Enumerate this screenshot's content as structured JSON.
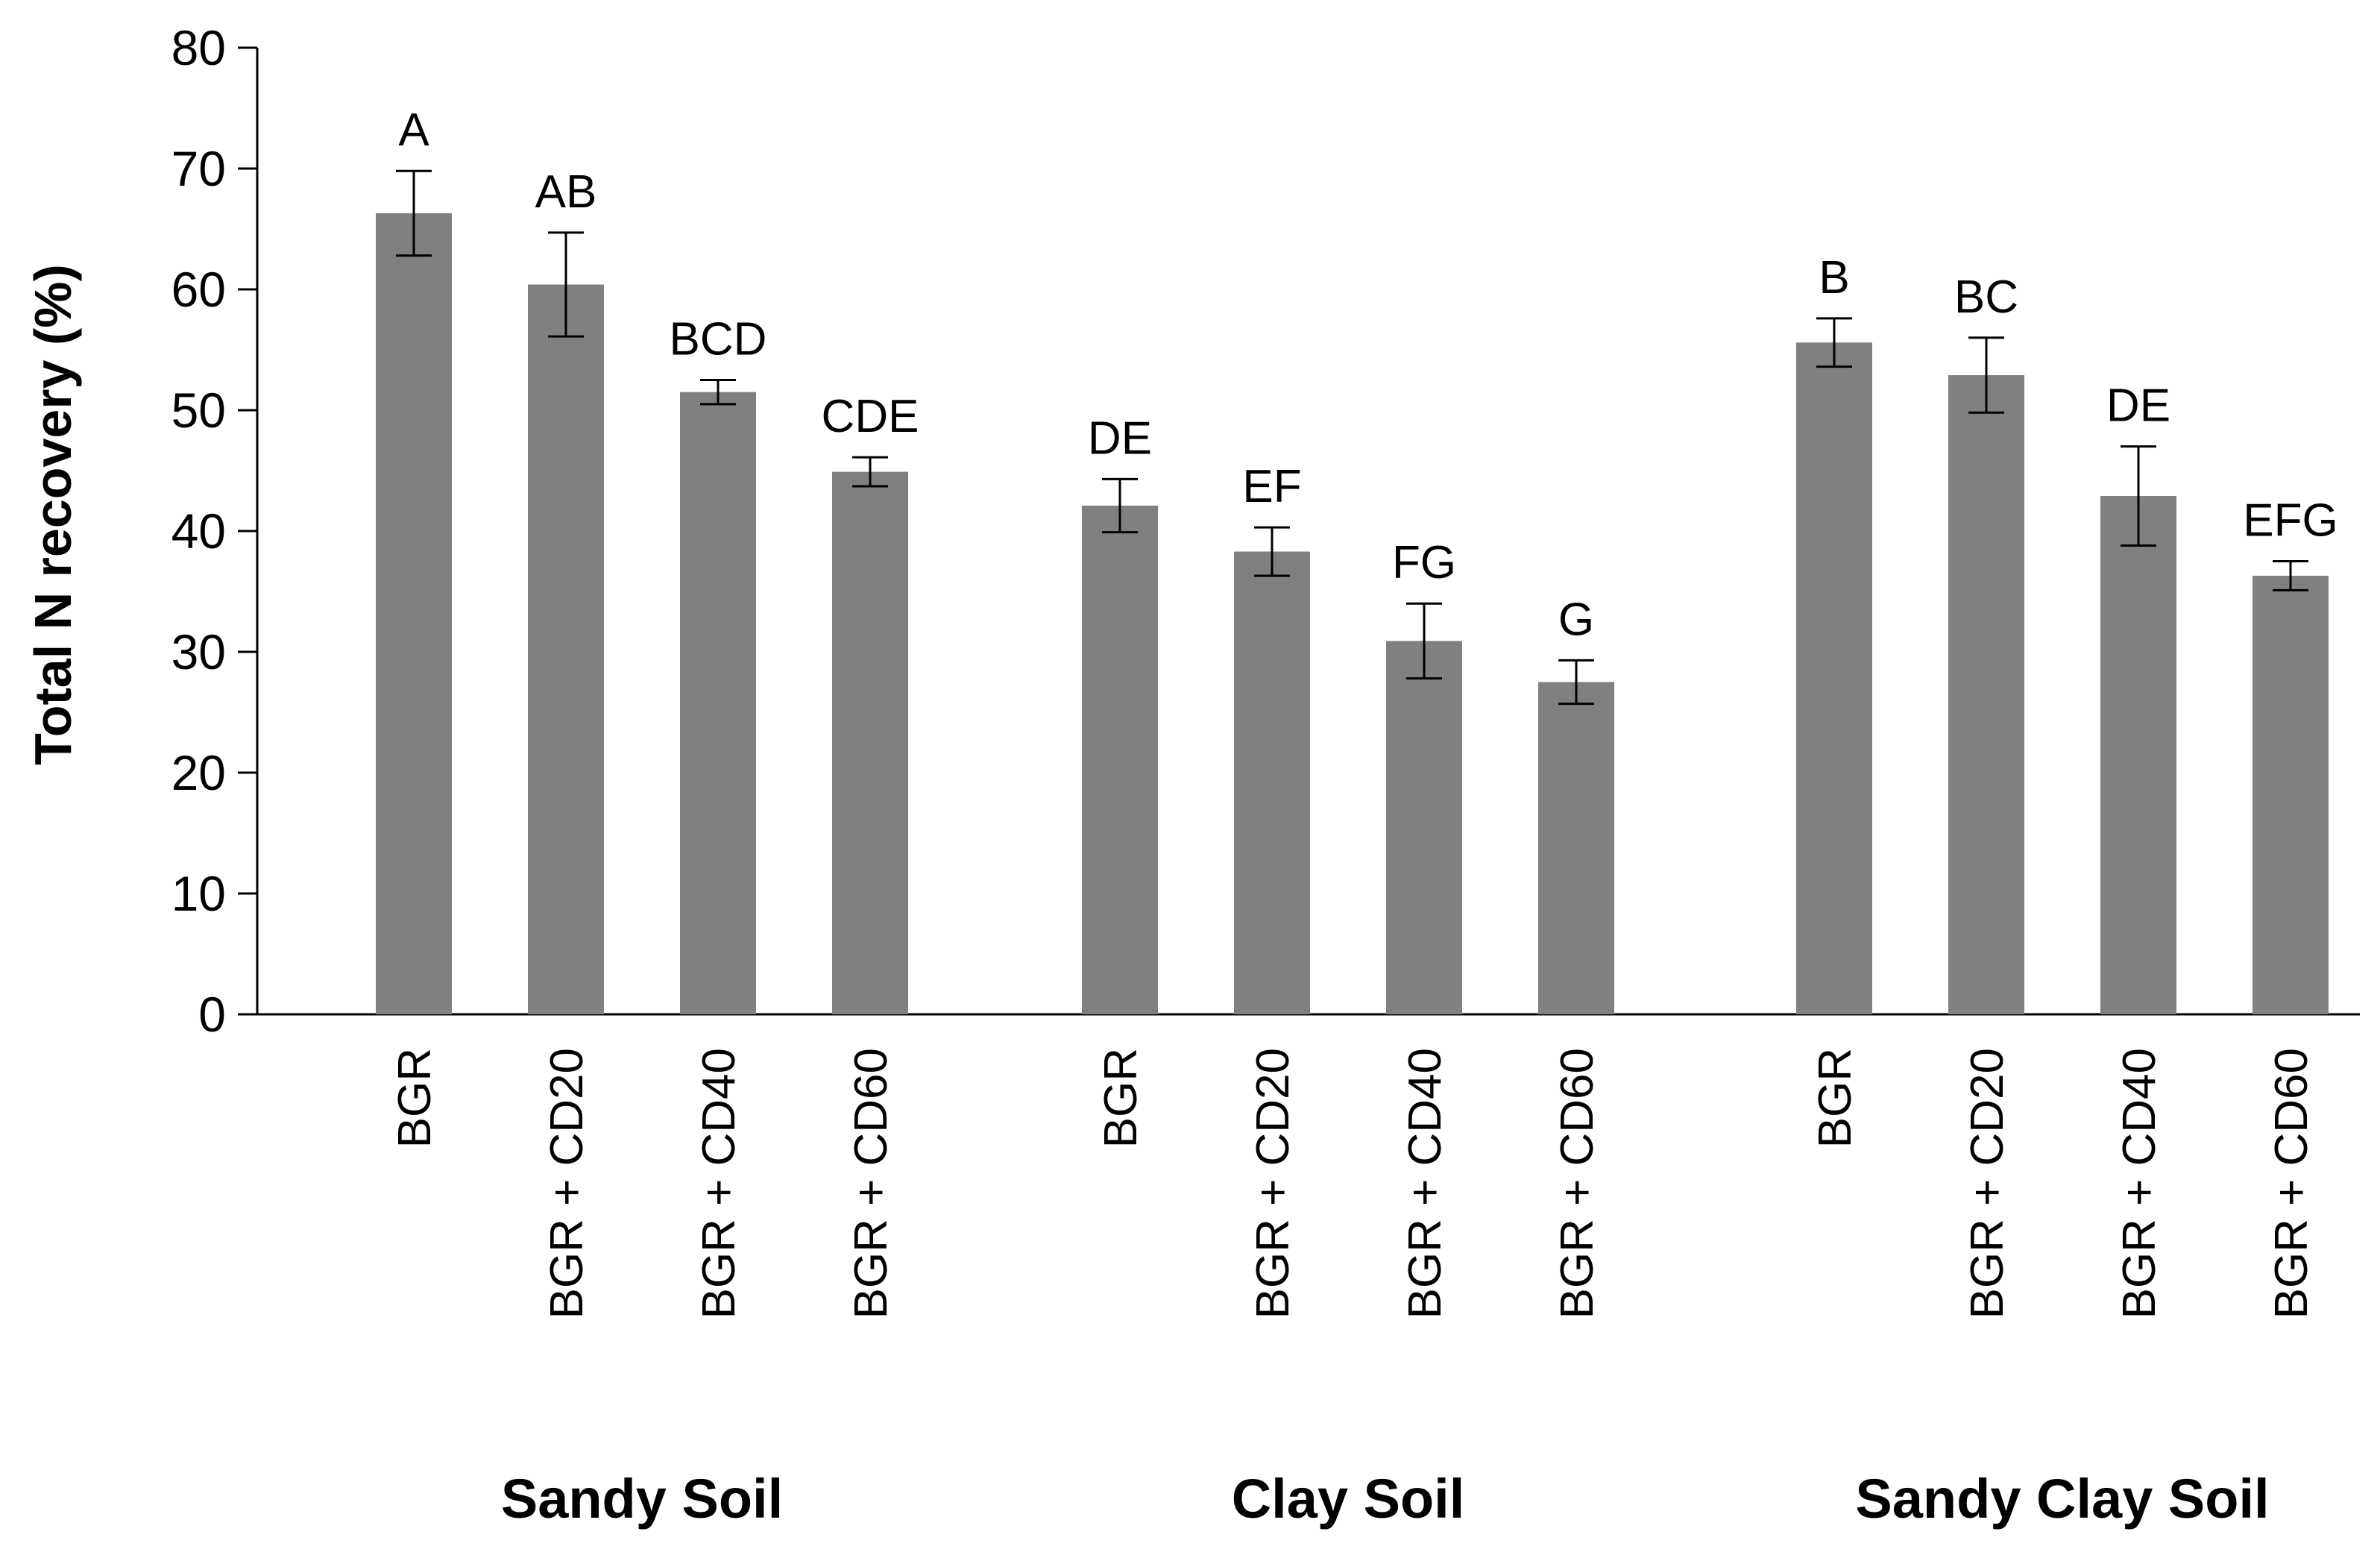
{
  "chart_data": {
    "type": "bar",
    "title": "",
    "ylabel": "Total N recovery (%)",
    "xlabel": "",
    "ylim": [
      0,
      80
    ],
    "yticks": [
      0,
      10,
      20,
      30,
      40,
      50,
      60,
      70,
      80
    ],
    "grid": false,
    "colors": {
      "bar": "#808080",
      "axis": "#000000",
      "error": "#000000"
    },
    "groups": [
      {
        "name": "Sandy Soil",
        "bars": [
          {
            "category": "BGR",
            "value": 66.3,
            "error": 3.5,
            "sig": "A"
          },
          {
            "category": "BGR + CD20",
            "value": 60.4,
            "error": 4.3,
            "sig": "AB"
          },
          {
            "category": "BGR + CD40",
            "value": 51.5,
            "error": 1.0,
            "sig": "BCD"
          },
          {
            "category": "BGR + CD60",
            "value": 44.9,
            "error": 1.2,
            "sig": "CDE"
          }
        ]
      },
      {
        "name": "Clay Soil",
        "bars": [
          {
            "category": "BGR",
            "value": 42.1,
            "error": 2.2,
            "sig": "DE"
          },
          {
            "category": "BGR + CD20",
            "value": 38.3,
            "error": 2.0,
            "sig": "EF"
          },
          {
            "category": "BGR + CD40",
            "value": 30.9,
            "error": 3.1,
            "sig": "FG"
          },
          {
            "category": "BGR + CD60",
            "value": 27.5,
            "error": 1.8,
            "sig": "G"
          }
        ]
      },
      {
        "name": "Sandy Clay Soil",
        "bars": [
          {
            "category": "BGR",
            "value": 55.6,
            "error": 2.0,
            "sig": "B"
          },
          {
            "category": "BGR + CD20",
            "value": 52.9,
            "error": 3.1,
            "sig": "BC"
          },
          {
            "category": "BGR + CD40",
            "value": 42.9,
            "error": 4.1,
            "sig": "DE"
          },
          {
            "category": "BGR + CD60",
            "value": 36.3,
            "error": 1.2,
            "sig": "EFG"
          }
        ]
      }
    ]
  }
}
